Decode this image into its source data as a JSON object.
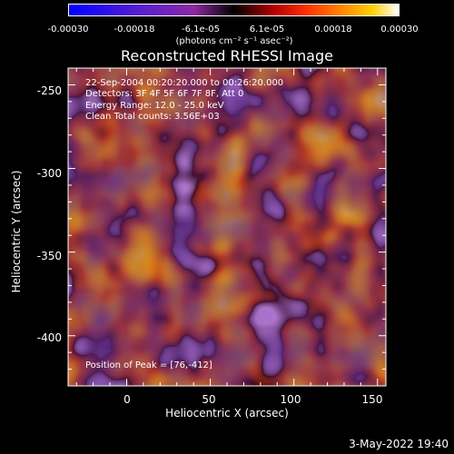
{
  "colorbar": {
    "ticks": [
      "-0.00030",
      "-0.00018",
      "-6.1e-05",
      "6.1e-05",
      "0.00018",
      "0.00030"
    ],
    "units": "(photons cm⁻² s⁻¹ asec⁻²)"
  },
  "title": "Reconstructed RHESSI Image",
  "annotations": {
    "line1": "22-Sep-2004 00:20:20.000 to 00:26:20.000",
    "line2": "Detectors: 3F 4F 5F 6F 7F 8F, Att 0",
    "line3": "Energy Range: 12.0 - 25.0 keV",
    "line4": "Clean    Total counts: 3.56E+03",
    "peak": "Position of Peak = [76,-412]"
  },
  "axes": {
    "xlabel": "Heliocentric X (arcsec)",
    "ylabel": "Heliocentric Y (arcsec)",
    "xticks": [
      "0",
      "50",
      "100",
      "150"
    ],
    "yticks": [
      "-250",
      "-300",
      "-350",
      "-400"
    ],
    "xlim": [
      -35,
      155
    ],
    "ylim": [
      -430,
      -240
    ]
  },
  "timestamp": "3-May-2022 19:40"
}
